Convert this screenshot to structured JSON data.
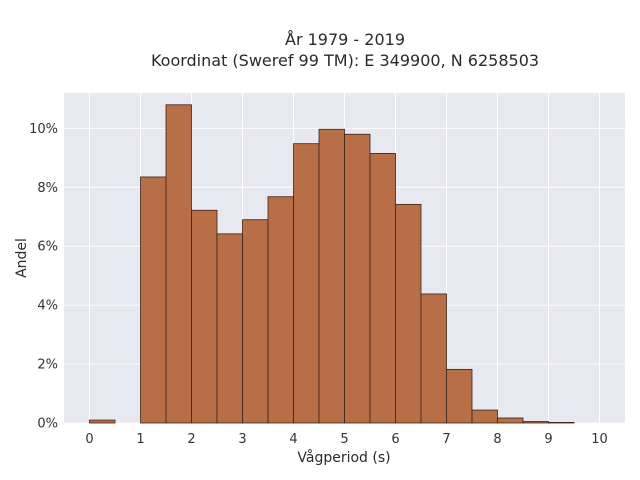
{
  "chart_data": {
    "type": "bar",
    "title_line1": "År 1979 - 2019",
    "title_line2": "Koordinat (Sweref 99 TM): E 349900, N 6258503",
    "xlabel": "Vågperiod (s)",
    "ylabel": "Andel",
    "xlim": [
      -0.5,
      10.5
    ],
    "ylim": [
      0,
      11.2
    ],
    "x_ticks": [
      0,
      1,
      2,
      3,
      4,
      5,
      6,
      7,
      8,
      9,
      10
    ],
    "y_ticks": [
      0,
      2,
      4,
      6,
      8,
      10
    ],
    "y_tick_labels": [
      "0%",
      "2%",
      "4%",
      "6%",
      "8%",
      "10%"
    ],
    "bin_width": 0.5,
    "bins": [
      {
        "start": 0.0,
        "value": 0.1
      },
      {
        "start": 0.5,
        "value": 0.0
      },
      {
        "start": 1.0,
        "value": 8.35
      },
      {
        "start": 1.5,
        "value": 10.8
      },
      {
        "start": 2.0,
        "value": 7.22
      },
      {
        "start": 2.5,
        "value": 6.42
      },
      {
        "start": 3.0,
        "value": 6.9
      },
      {
        "start": 3.5,
        "value": 7.68
      },
      {
        "start": 4.0,
        "value": 9.48
      },
      {
        "start": 4.5,
        "value": 9.97
      },
      {
        "start": 5.0,
        "value": 9.8
      },
      {
        "start": 5.5,
        "value": 9.15
      },
      {
        "start": 6.0,
        "value": 7.42
      },
      {
        "start": 6.5,
        "value": 4.38
      },
      {
        "start": 7.0,
        "value": 1.82
      },
      {
        "start": 7.5,
        "value": 0.44
      },
      {
        "start": 8.0,
        "value": 0.17
      },
      {
        "start": 8.5,
        "value": 0.05
      },
      {
        "start": 9.0,
        "value": 0.02
      }
    ],
    "grid": true,
    "colors": {
      "bar_fill": "#b86f47",
      "bar_stroke": "#3a2418",
      "plot_bg": "#e8e8f1",
      "grid": "#ffffff"
    }
  }
}
